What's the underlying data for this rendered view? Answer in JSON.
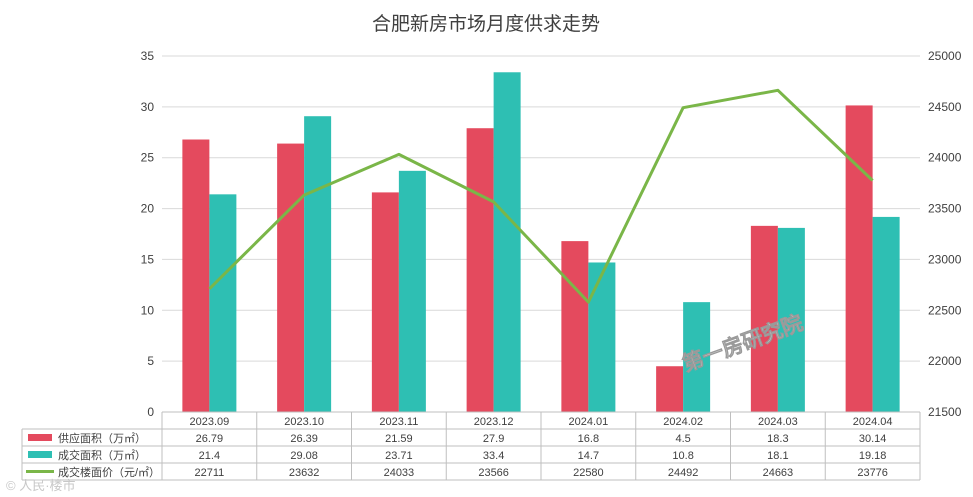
{
  "chart_data": {
    "type": "bar",
    "title": "合肥新房市场月度供求走势",
    "categories": [
      "2023.09",
      "2023.10",
      "2023.11",
      "2023.12",
      "2024.01",
      "2024.02",
      "2024.03",
      "2024.04"
    ],
    "series": [
      {
        "name": "供应面积（万㎡）",
        "kind": "bar",
        "axis": "left",
        "color": "#e44a5e",
        "values": [
          26.79,
          26.39,
          21.59,
          27.9,
          16.8,
          4.5,
          18.3,
          30.14
        ],
        "labels": [
          "26.79",
          "26.39",
          "21.59",
          "27.9",
          "16.8",
          "4.5",
          "18.3",
          "30.14"
        ]
      },
      {
        "name": "成交面积（万㎡）",
        "kind": "bar",
        "axis": "left",
        "color": "#2ebfb3",
        "values": [
          21.4,
          29.08,
          23.71,
          33.4,
          14.7,
          10.8,
          18.1,
          19.18
        ],
        "labels": [
          "21.4",
          "29.08",
          "23.71",
          "33.4",
          "14.7",
          "10.8",
          "18.1",
          "19.18"
        ]
      },
      {
        "name": "成交楼面价（元/㎡）",
        "kind": "line",
        "axis": "right",
        "color": "#7ab648",
        "values": [
          22711,
          23632,
          24033,
          23566,
          22580,
          24492,
          24663,
          23776
        ],
        "labels": [
          "22711",
          "23632",
          "24033",
          "23566",
          "22580",
          "24492",
          "24663",
          "23776"
        ]
      }
    ],
    "y_left": {
      "min": 0,
      "max": 35,
      "ticks": [
        "0",
        "5",
        "10",
        "15",
        "20",
        "25",
        "30",
        "35"
      ]
    },
    "y_right": {
      "min": 21500,
      "max": 25000,
      "ticks": [
        "21500",
        "22000",
        "22500",
        "23000",
        "23500",
        "24000",
        "24500",
        "25000"
      ]
    },
    "grid": true,
    "legend": "data-table-below",
    "watermark": "第一房研究院",
    "source": "© 人民·楼市"
  }
}
